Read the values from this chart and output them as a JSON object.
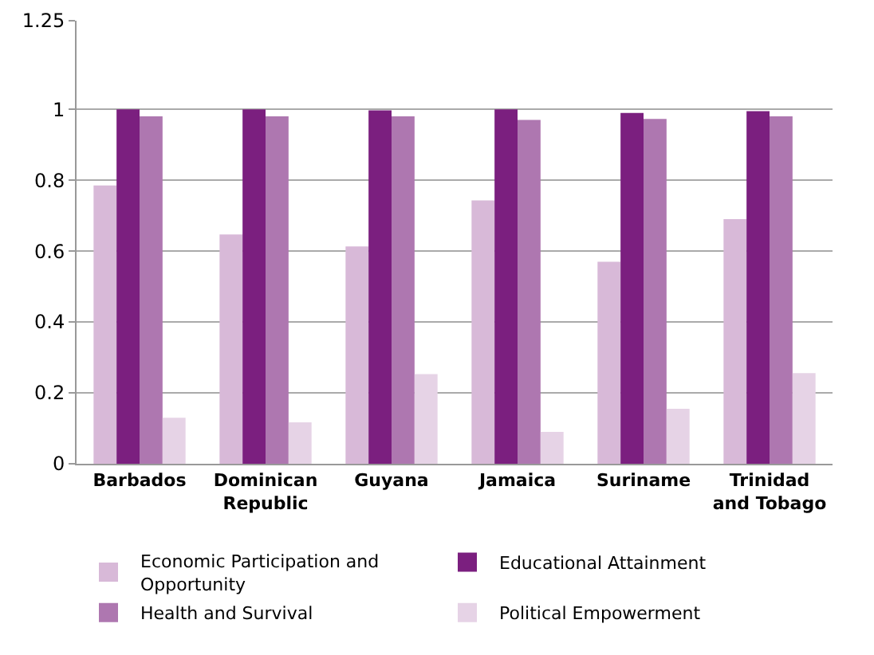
{
  "chart_data": {
    "type": "bar",
    "categories": [
      "Barbados",
      "Dominican Republic",
      "Guyana",
      "Jamaica",
      "Suriname",
      "Trinidad and Tobago"
    ],
    "series": [
      {
        "name": "Economic Participation and Opportunity",
        "color": "#d8b9d8",
        "values": [
          0.785,
          0.647,
          0.613,
          0.743,
          0.57,
          0.69
        ]
      },
      {
        "name": "Educational Attainment",
        "color": "#7b1f7f",
        "values": [
          1.0,
          1.0,
          0.997,
          1.0,
          0.99,
          0.995
        ]
      },
      {
        "name": "Health and Survival",
        "color": "#ae77b0",
        "values": [
          0.98,
          0.98,
          0.98,
          0.97,
          0.973,
          0.98
        ]
      },
      {
        "name": "Political Empowerment",
        "color": "#e6d3e6",
        "values": [
          0.13,
          0.117,
          0.253,
          0.09,
          0.155,
          0.256
        ]
      }
    ],
    "ylim": [
      0,
      1.25
    ],
    "yticks": [
      0,
      0.2,
      0.4,
      0.6,
      0.8,
      1,
      1.25
    ],
    "grid": "y",
    "legend": "bottom"
  }
}
